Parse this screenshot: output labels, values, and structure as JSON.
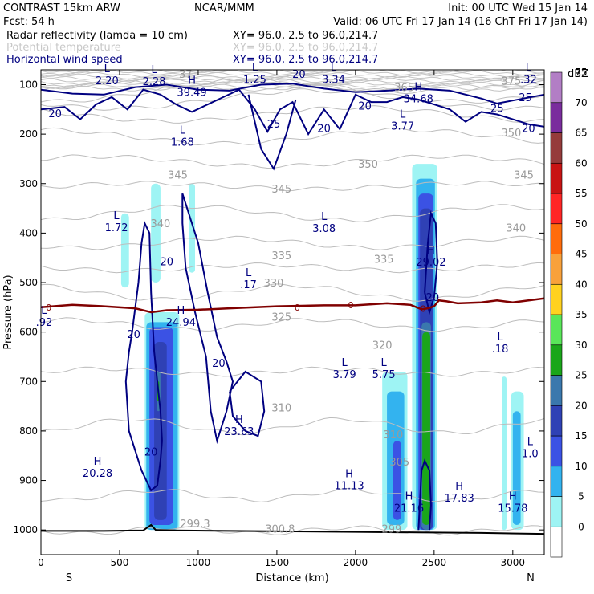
{
  "header": {
    "title_left": "CONTRAST 15km ARW",
    "center": "NCAR/MMM",
    "init": "Init: 00 UTC Wed 15 Jan 14",
    "fcst": "Fcst:   54 h",
    "valid": "Valid: 06 UTC Fri 17 Jan 14 (16 ChT Fri 17 Jan 14)",
    "fields": [
      {
        "name": "Radar reflectivity (lamda = 10 cm)",
        "xy": "XY=  96.0,  2.5 to  96.0,214.7",
        "color": "#000000"
      },
      {
        "name": "Potential temperature",
        "xy": "XY=  96.0,  2.5 to  96.0,214.7",
        "color": "#c8c8c8"
      },
      {
        "name": "Horizontal wind speed",
        "xy": "XY=  96.0,  2.5 to  96.0,214.7",
        "color": "#000080"
      }
    ]
  },
  "chart_data": {
    "type": "heatmap",
    "title": "",
    "xlabel": "Distance (km)",
    "ylabel": "Pressure (hPa)",
    "xlim": [
      0,
      3200
    ],
    "ylim": [
      1050,
      70
    ],
    "x_ticks": [
      0,
      500,
      1000,
      1500,
      2000,
      2500,
      3000
    ],
    "y_ticks": [
      100,
      200,
      300,
      400,
      500,
      600,
      700,
      800,
      900,
      1000
    ],
    "x_end_labels": {
      "left": "S",
      "right": "N"
    },
    "colorbar": {
      "unit": "dBZ",
      "levels": [
        0,
        5,
        10,
        15,
        20,
        25,
        30,
        35,
        40,
        45,
        50,
        55,
        60,
        65,
        70,
        75
      ],
      "colors": [
        "#ffffff",
        "#9ef4f4",
        "#33b3ef",
        "#3b52e4",
        "#2f41b5",
        "#3a78ad",
        "#1aa61a",
        "#59e659",
        "#ffd21f",
        "#f8a13a",
        "#ff6c0b",
        "#ff2626",
        "#c81414",
        "#953b3b",
        "#7a2d9d",
        "#b27ec5"
      ]
    },
    "reflectivity_cells": [
      {
        "x0": 510,
        "x1": 560,
        "p0": 360,
        "p1": 510,
        "dbz": 5
      },
      {
        "x0": 700,
        "x1": 760,
        "p0": 300,
        "p1": 500,
        "dbz": 5
      },
      {
        "x0": 940,
        "x1": 980,
        "p0": 300,
        "p1": 480,
        "dbz": 5
      },
      {
        "x0": 660,
        "x1": 880,
        "p0": 560,
        "p1": 1000,
        "dbz": 5
      },
      {
        "x0": 670,
        "x1": 870,
        "p0": 580,
        "p1": 1000,
        "dbz": 10
      },
      {
        "x0": 690,
        "x1": 840,
        "p0": 590,
        "p1": 990,
        "dbz": 15
      },
      {
        "x0": 720,
        "x1": 800,
        "p0": 620,
        "p1": 980,
        "dbz": 20
      },
      {
        "x0": 735,
        "x1": 760,
        "p0": 680,
        "p1": 760,
        "dbz": 25
      },
      {
        "x0": 740,
        "x1": 752,
        "p0": 700,
        "p1": 740,
        "dbz": 30
      },
      {
        "x0": 2170,
        "x1": 2330,
        "p0": 680,
        "p1": 1000,
        "dbz": 5
      },
      {
        "x0": 2200,
        "x1": 2310,
        "p0": 720,
        "p1": 990,
        "dbz": 10
      },
      {
        "x0": 2240,
        "x1": 2290,
        "p0": 820,
        "p1": 980,
        "dbz": 15
      },
      {
        "x0": 2360,
        "x1": 2520,
        "p0": 260,
        "p1": 1000,
        "dbz": 5
      },
      {
        "x0": 2385,
        "x1": 2505,
        "p0": 290,
        "p1": 1000,
        "dbz": 10
      },
      {
        "x0": 2400,
        "x1": 2495,
        "p0": 320,
        "p1": 1000,
        "dbz": 15
      },
      {
        "x0": 2410,
        "x1": 2490,
        "p0": 350,
        "p1": 1000,
        "dbz": 20
      },
      {
        "x0": 2420,
        "x1": 2480,
        "p0": 580,
        "p1": 1000,
        "dbz": 25
      },
      {
        "x0": 2425,
        "x1": 2475,
        "p0": 600,
        "p1": 990,
        "dbz": 30
      },
      {
        "x0": 2930,
        "x1": 2960,
        "p0": 690,
        "p1": 1000,
        "dbz": 5
      },
      {
        "x0": 2990,
        "x1": 3070,
        "p0": 720,
        "p1": 1000,
        "dbz": 5
      },
      {
        "x0": 3000,
        "x1": 3050,
        "p0": 760,
        "p1": 990,
        "dbz": 10
      }
    ],
    "theta_contours_K": [
      300.0,
      305,
      310,
      315,
      320,
      325,
      330,
      335,
      340,
      345,
      350,
      355,
      360,
      365,
      370,
      375
    ],
    "theta_labels": [
      {
        "text": "345",
        "x": 870,
        "p": 290
      },
      {
        "text": "345",
        "x": 1530,
        "p": 318
      },
      {
        "text": "345",
        "x": 3070,
        "p": 290
      },
      {
        "text": "350",
        "x": 2080,
        "p": 268
      },
      {
        "text": "340",
        "x": 760,
        "p": 388
      },
      {
        "text": "340",
        "x": 3020,
        "p": 397
      },
      {
        "text": "335",
        "x": 1530,
        "p": 453
      },
      {
        "text": "335",
        "x": 2180,
        "p": 460
      },
      {
        "text": "330",
        "x": 1480,
        "p": 508
      },
      {
        "text": "325",
        "x": 1530,
        "p": 577
      },
      {
        "text": "320",
        "x": 2170,
        "p": 634
      },
      {
        "text": "310",
        "x": 1530,
        "p": 760
      },
      {
        "text": "310",
        "x": 2240,
        "p": 815
      },
      {
        "text": "305",
        "x": 2280,
        "p": 870
      },
      {
        "text": "300.8",
        "x": 1520,
        "p": 1005
      },
      {
        "text": "299.3",
        "x": 980,
        "p": 995
      },
      {
        "text": "299",
        "x": 2230,
        "p": 1005
      },
      {
        "text": "375",
        "x": 2990,
        "p": 100
      },
      {
        "text": "350",
        "x": 2990,
        "p": 205
      },
      {
        "text": "365",
        "x": 2310,
        "p": 113
      },
      {
        "text": "37",
        "x": 920,
        "p": 86
      }
    ],
    "wind_contours_ms": [
      20,
      25
    ],
    "wind_labels": [
      {
        "text": "20",
        "x": 90,
        "p": 166
      },
      {
        "text": "25",
        "x": 1480,
        "p": 187
      },
      {
        "text": "20",
        "x": 1800,
        "p": 196
      },
      {
        "text": "20",
        "x": 2060,
        "p": 150
      },
      {
        "text": "25",
        "x": 2900,
        "p": 155
      },
      {
        "text": "25",
        "x": 3080,
        "p": 133
      },
      {
        "text": "20",
        "x": 3100,
        "p": 196
      },
      {
        "text": "20",
        "x": 1640,
        "p": 86
      },
      {
        "text": "20",
        "x": 800,
        "p": 465
      },
      {
        "text": "20",
        "x": 590,
        "p": 612
      },
      {
        "text": "20",
        "x": 1130,
        "p": 670
      },
      {
        "text": "20",
        "x": 700,
        "p": 850
      },
      {
        "text": "20",
        "x": 2490,
        "p": 537
      }
    ],
    "extrema": [
      {
        "type": "L",
        "value": "2.20",
        "x": 420,
        "p": 86,
        "layer": "wind"
      },
      {
        "type": "L",
        "value": "2.28",
        "x": 720,
        "p": 88,
        "layer": "wind"
      },
      {
        "type": "H",
        "value": "39.49",
        "x": 960,
        "p": 110,
        "layer": "wind"
      },
      {
        "type": "L",
        "value": "1.25",
        "x": 1360,
        "p": 84,
        "layer": "wind"
      },
      {
        "type": "L",
        "value": "3.34",
        "x": 1860,
        "p": 84,
        "layer": "wind"
      },
      {
        "type": "H",
        "value": "34.68",
        "x": 2400,
        "p": 123,
        "layer": "wind"
      },
      {
        "type": "L",
        "value": ".32",
        "x": 3100,
        "p": 84,
        "layer": "wind"
      },
      {
        "type": "L",
        "value": "3.77",
        "x": 2300,
        "p": 178,
        "layer": "wind"
      },
      {
        "type": "L",
        "value": "1.68",
        "x": 900,
        "p": 210,
        "layer": "wind"
      },
      {
        "type": "L",
        "value": "1.72",
        "x": 480,
        "p": 383,
        "layer": "wind"
      },
      {
        "type": "L",
        "value": "3.08",
        "x": 1800,
        "p": 385,
        "layer": "wind"
      },
      {
        "type": "H",
        "value": "29.02",
        "x": 2480,
        "p": 453,
        "layer": "wind"
      },
      {
        "type": "L",
        "value": ".17",
        "x": 1320,
        "p": 498,
        "layer": "wind"
      },
      {
        "type": "L",
        "value": ".92",
        "x": 20,
        "p": 575,
        "layer": "wind"
      },
      {
        "type": "H",
        "value": "24.94",
        "x": 890,
        "p": 575,
        "layer": "wind"
      },
      {
        "type": "L",
        "value": ".18",
        "x": 2920,
        "p": 628,
        "layer": "wind"
      },
      {
        "type": "L",
        "value": "3.79",
        "x": 1930,
        "p": 680,
        "layer": "wind"
      },
      {
        "type": "L",
        "value": "5.75",
        "x": 2180,
        "p": 680,
        "layer": "wind"
      },
      {
        "type": "H",
        "value": "23.63",
        "x": 1260,
        "p": 795,
        "layer": "wind"
      },
      {
        "type": "L",
        "value": "1.0",
        "x": 3110,
        "p": 840,
        "layer": "wind"
      },
      {
        "type": "H",
        "value": "20.28",
        "x": 360,
        "p": 880,
        "layer": "wind"
      },
      {
        "type": "H",
        "value": "11.13",
        "x": 1960,
        "p": 905,
        "layer": "wind"
      },
      {
        "type": "H",
        "value": "21.16",
        "x": 2340,
        "p": 950,
        "layer": "wind"
      },
      {
        "type": "H",
        "value": "17.83",
        "x": 2660,
        "p": 930,
        "layer": "wind"
      },
      {
        "type": "H",
        "value": "15.78",
        "x": 3000,
        "p": 950,
        "layer": "wind"
      }
    ],
    "freezing_level_label": "0",
    "freezing_level_labels": [
      {
        "text": "0",
        "x": 50,
        "p": 550
      },
      {
        "text": "0",
        "x": 1630,
        "p": 550
      },
      {
        "text": "0",
        "x": 1970,
        "p": 545
      },
      {
        "text": "0",
        "x": 2430,
        "p": 553
      }
    ],
    "freezing_level_p": [
      [
        0,
        550
      ],
      [
        200,
        545
      ],
      [
        400,
        548
      ],
      [
        600,
        552
      ],
      [
        700,
        560
      ],
      [
        800,
        556
      ],
      [
        1000,
        555
      ],
      [
        1200,
        552
      ],
      [
        1500,
        548
      ],
      [
        1800,
        546
      ],
      [
        2000,
        546
      ],
      [
        2200,
        542
      ],
      [
        2350,
        545
      ],
      [
        2420,
        554
      ],
      [
        2460,
        552
      ],
      [
        2500,
        548
      ],
      [
        2530,
        536
      ],
      [
        2580,
        538
      ],
      [
        2650,
        542
      ],
      [
        2800,
        540
      ],
      [
        2900,
        536
      ],
      [
        3000,
        540
      ],
      [
        3100,
        536
      ],
      [
        3200,
        532
      ]
    ],
    "surface_p": [
      [
        0,
        1002
      ],
      [
        400,
        1002
      ],
      [
        650,
        1001
      ],
      [
        700,
        990
      ],
      [
        730,
        1000
      ],
      [
        850,
        1001
      ],
      [
        1200,
        1002
      ],
      [
        2000,
        1004
      ],
      [
        2400,
        1005
      ],
      [
        2800,
        1006
      ],
      [
        3200,
        1008
      ]
    ],
    "grid": false
  }
}
